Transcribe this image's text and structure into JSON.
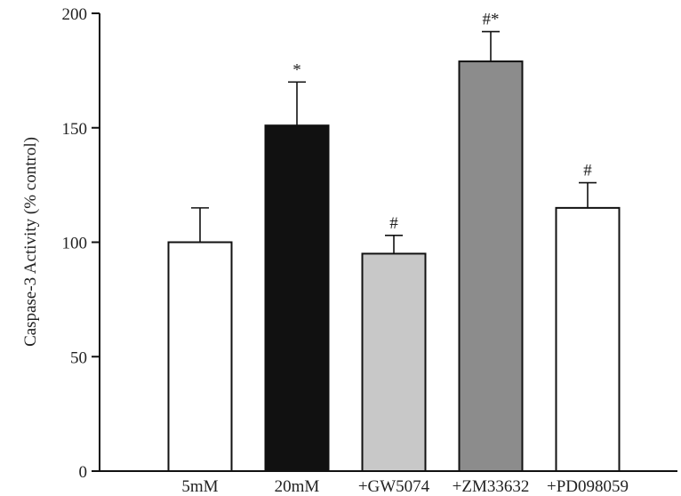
{
  "chart_data": {
    "type": "bar",
    "title": "",
    "xlabel": "",
    "ylabel": "Caspase-3 Activity (% control)",
    "ylim": [
      0,
      200
    ],
    "yticks": [
      0,
      50,
      100,
      150,
      200
    ],
    "grid": false,
    "categories": [
      "5mM",
      "20mM",
      "+GW5074",
      "+ZM33632",
      "+PD098059"
    ],
    "values": [
      100,
      151,
      95,
      179,
      115
    ],
    "errors": [
      15,
      19,
      8,
      13,
      11
    ],
    "annotations": [
      "",
      "*",
      "#",
      "#*",
      "#"
    ],
    "colors": [
      "#ffffff",
      "#111111",
      "#c8c8c8",
      "#8c8c8c",
      "#ffffff"
    ],
    "edge_color": "#111111"
  }
}
